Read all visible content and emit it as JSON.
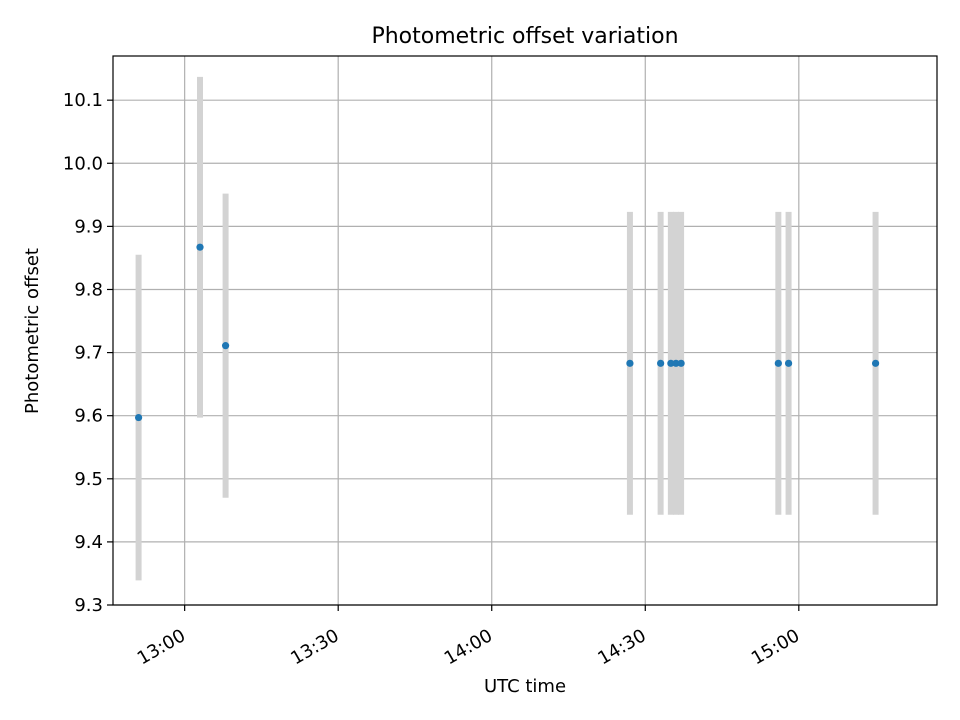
{
  "chart_data": {
    "type": "scatter",
    "title": "Photometric offset variation",
    "xlabel": "UTC time",
    "ylabel": "Photometric offset",
    "x_ticks": [
      "13:00",
      "13:30",
      "14:00",
      "14:30",
      "15:00"
    ],
    "x_range": [
      "12:46",
      "15:27"
    ],
    "y_ticks": [
      "9.3",
      "9.4",
      "9.5",
      "9.6",
      "9.7",
      "9.8",
      "9.9",
      "10.0",
      "10.1"
    ],
    "ylim": [
      9.3,
      10.17
    ],
    "grid": true,
    "marker_color": "#1f77b4",
    "errorbar_color": "#d3d3d3",
    "points": [
      {
        "x": "12:51",
        "y": 9.597,
        "err": 0.258
      },
      {
        "x": "13:03",
        "y": 9.867,
        "err": 0.27
      },
      {
        "x": "13:08",
        "y": 9.711,
        "err": 0.241
      },
      {
        "x": "14:27",
        "y": 9.683,
        "err": 0.24
      },
      {
        "x": "14:33",
        "y": 9.683,
        "err": 0.24
      },
      {
        "x": "14:35",
        "y": 9.683,
        "err": 0.24
      },
      {
        "x": "14:36",
        "y": 9.683,
        "err": 0.24
      },
      {
        "x": "14:37",
        "y": 9.683,
        "err": 0.24
      },
      {
        "x": "14:56",
        "y": 9.683,
        "err": 0.24
      },
      {
        "x": "14:58",
        "y": 9.683,
        "err": 0.24
      },
      {
        "x": "15:15",
        "y": 9.683,
        "err": 0.24
      }
    ]
  }
}
